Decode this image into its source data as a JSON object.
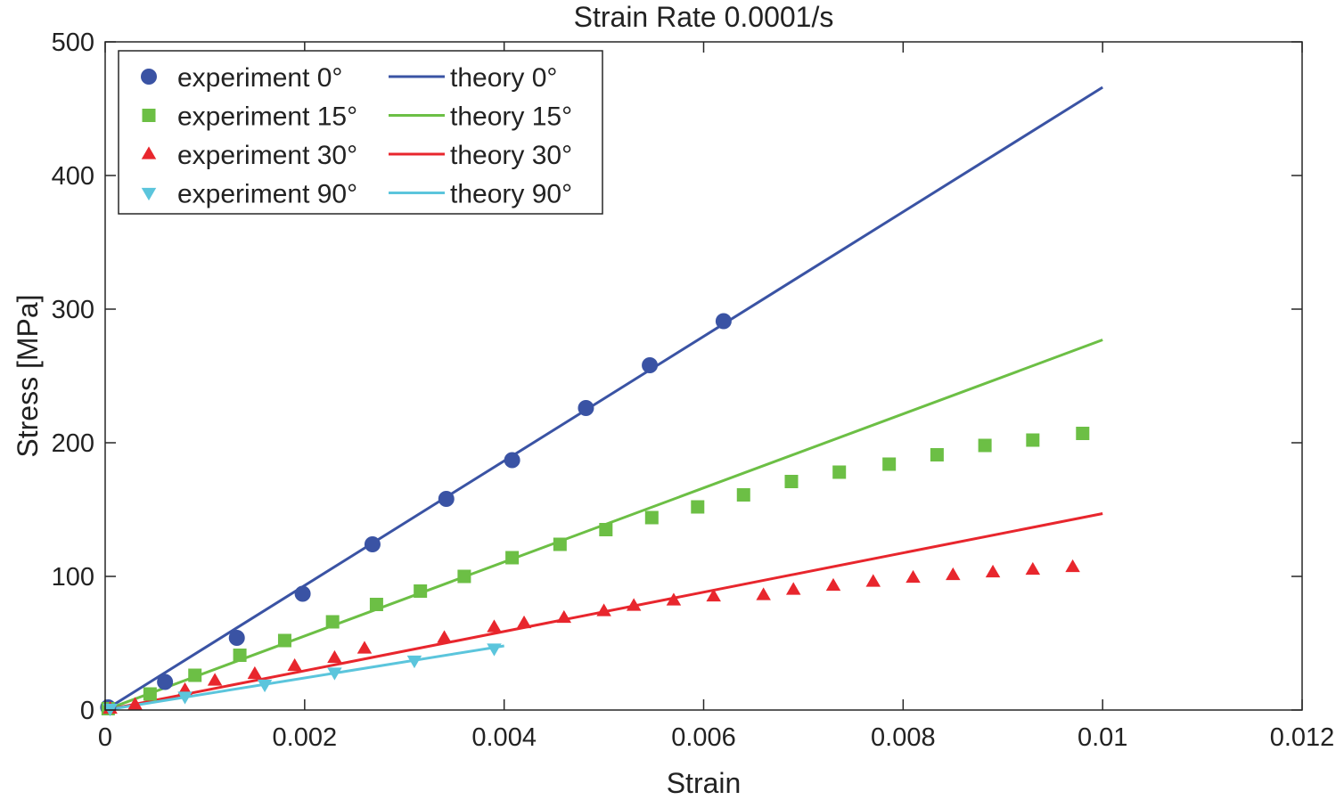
{
  "chart_data": {
    "type": "scatter",
    "title": "Strain Rate 0.0001/s",
    "xlabel": "Strain",
    "ylabel": "Stress [MPa]",
    "xlim": [
      0,
      0.012
    ],
    "ylim": [
      0,
      500
    ],
    "xticks": [
      0,
      0.002,
      0.004,
      0.006,
      0.008,
      0.01,
      0.012
    ],
    "xtick_labels": [
      "0",
      "0.002",
      "0.004",
      "0.006",
      "0.008",
      "0.01",
      "0.012"
    ],
    "yticks": [
      0,
      100,
      200,
      300,
      400,
      500
    ],
    "ytick_labels": [
      "0",
      "100",
      "200",
      "300",
      "400",
      "500"
    ],
    "grid": false,
    "legend_position": "top-left",
    "series": [
      {
        "name": "experiment 0°",
        "kind": "marker",
        "marker": "circle",
        "color": "#3a53a4",
        "points": [
          [
            3e-05,
            2
          ],
          [
            0.0006,
            21
          ],
          [
            0.00132,
            54
          ],
          [
            0.00198,
            87
          ],
          [
            0.00268,
            124
          ],
          [
            0.00342,
            158
          ],
          [
            0.00408,
            187
          ],
          [
            0.00482,
            226
          ],
          [
            0.00546,
            258
          ],
          [
            0.0062,
            291
          ]
        ]
      },
      {
        "name": "experiment 15°",
        "kind": "marker",
        "marker": "square",
        "color": "#6cbf45",
        "points": [
          [
            3e-05,
            1
          ],
          [
            0.00045,
            12
          ],
          [
            0.0009,
            26
          ],
          [
            0.00135,
            41
          ],
          [
            0.0018,
            52
          ],
          [
            0.00228,
            66
          ],
          [
            0.00272,
            79
          ],
          [
            0.00316,
            89
          ],
          [
            0.0036,
            100
          ],
          [
            0.00408,
            114
          ],
          [
            0.00456,
            124
          ],
          [
            0.00502,
            135
          ],
          [
            0.00548,
            144
          ],
          [
            0.00594,
            152
          ],
          [
            0.0064,
            161
          ],
          [
            0.00688,
            171
          ],
          [
            0.00736,
            178
          ],
          [
            0.00786,
            184
          ],
          [
            0.00834,
            191
          ],
          [
            0.00882,
            198
          ],
          [
            0.0093,
            202
          ],
          [
            0.0098,
            207
          ]
        ]
      },
      {
        "name": "experiment 30°",
        "kind": "marker",
        "marker": "triangle-up",
        "color": "#e8262d",
        "points": [
          [
            5e-05,
            1
          ],
          [
            0.0003,
            4
          ],
          [
            0.0008,
            15
          ],
          [
            0.0011,
            22
          ],
          [
            0.0015,
            27
          ],
          [
            0.0019,
            33
          ],
          [
            0.0023,
            39
          ],
          [
            0.0026,
            46
          ],
          [
            0.0034,
            54
          ],
          [
            0.0039,
            62
          ],
          [
            0.0042,
            65
          ],
          [
            0.0046,
            69
          ],
          [
            0.005,
            74
          ],
          [
            0.0053,
            78
          ],
          [
            0.0057,
            82
          ],
          [
            0.0061,
            85
          ],
          [
            0.0066,
            86
          ],
          [
            0.0069,
            90
          ],
          [
            0.0073,
            93
          ],
          [
            0.0077,
            96
          ],
          [
            0.0081,
            99
          ],
          [
            0.0085,
            101
          ],
          [
            0.0089,
            103
          ],
          [
            0.0093,
            105
          ],
          [
            0.0097,
            107
          ]
        ]
      },
      {
        "name": "experiment 90°",
        "kind": "marker",
        "marker": "triangle-down",
        "color": "#5bc5dc",
        "points": [
          [
            5e-05,
            1
          ],
          [
            0.0008,
            10
          ],
          [
            0.0016,
            19
          ],
          [
            0.0023,
            28
          ],
          [
            0.0031,
            37
          ],
          [
            0.0039,
            46
          ]
        ]
      },
      {
        "name": "theory  0°",
        "kind": "line",
        "color": "#3a53a4",
        "points": [
          [
            0,
            0
          ],
          [
            0.01,
            466
          ]
        ]
      },
      {
        "name": "theory  15°",
        "kind": "line",
        "color": "#6cbf45",
        "points": [
          [
            0,
            0
          ],
          [
            0.01,
            277
          ]
        ]
      },
      {
        "name": "theory  30°",
        "kind": "line",
        "color": "#e8262d",
        "points": [
          [
            0,
            0
          ],
          [
            0.01,
            147
          ]
        ]
      },
      {
        "name": "theory  90°",
        "kind": "line",
        "color": "#5bc5dc",
        "points": [
          [
            0,
            0
          ],
          [
            0.004,
            48
          ]
        ]
      }
    ]
  }
}
